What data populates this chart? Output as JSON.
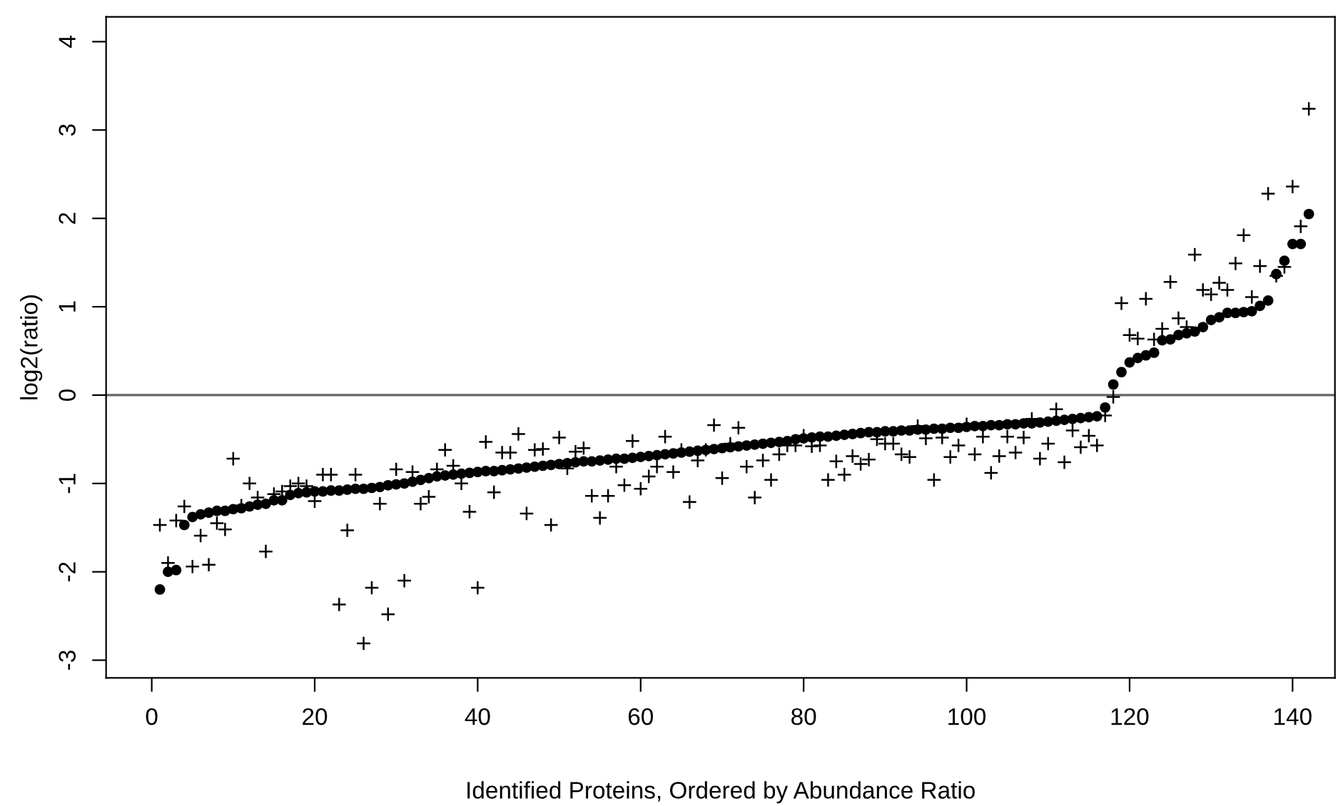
{
  "chart_data": {
    "type": "scatter",
    "xlabel": "Identified Proteins, Ordered by Abundance Ratio",
    "ylabel": "log2(ratio)",
    "xlim": [
      -5.6,
      145.2
    ],
    "ylim": [
      -3.2,
      4.28
    ],
    "xticks": [
      0,
      20,
      40,
      60,
      80,
      100,
      120,
      140
    ],
    "yticks": [
      -3,
      -2,
      -1,
      0,
      1,
      2,
      3,
      4
    ],
    "grid": false,
    "legend": false,
    "ref_lines": [
      {
        "axis": "y",
        "value": 0,
        "label": null,
        "color": "#666666"
      }
    ],
    "x": [
      1,
      2,
      3,
      4,
      5,
      6,
      7,
      8,
      9,
      10,
      11,
      12,
      13,
      14,
      15,
      16,
      17,
      18,
      19,
      20,
      21,
      22,
      23,
      24,
      25,
      26,
      27,
      28,
      29,
      30,
      31,
      32,
      33,
      34,
      35,
      36,
      37,
      38,
      39,
      40,
      41,
      42,
      43,
      44,
      45,
      46,
      47,
      48,
      49,
      50,
      51,
      52,
      53,
      54,
      55,
      56,
      57,
      58,
      59,
      60,
      61,
      62,
      63,
      64,
      65,
      66,
      67,
      68,
      69,
      70,
      71,
      72,
      73,
      74,
      75,
      76,
      77,
      78,
      79,
      80,
      81,
      82,
      83,
      84,
      85,
      86,
      87,
      88,
      89,
      90,
      91,
      92,
      93,
      94,
      95,
      96,
      97,
      98,
      99,
      100,
      101,
      102,
      103,
      104,
      105,
      106,
      107,
      108,
      109,
      110,
      111,
      112,
      113,
      114,
      115,
      116,
      117,
      118,
      119,
      120,
      121,
      122,
      123,
      124,
      125,
      126,
      127,
      128,
      129,
      130,
      131,
      132,
      133,
      134,
      135,
      136,
      137,
      138,
      139,
      140,
      141,
      142
    ],
    "series": [
      {
        "color": "#000000",
        "marker": "circle",
        "values": [
          -2.2,
          -2.0,
          -1.98,
          -1.47,
          -1.38,
          -1.35,
          -1.33,
          -1.31,
          -1.31,
          -1.29,
          -1.28,
          -1.26,
          -1.24,
          -1.23,
          -1.19,
          -1.19,
          -1.13,
          -1.11,
          -1.1,
          -1.09,
          -1.09,
          -1.08,
          -1.08,
          -1.07,
          -1.06,
          -1.06,
          -1.05,
          -1.04,
          -1.02,
          -1.01,
          -1.0,
          -0.98,
          -0.96,
          -0.94,
          -0.92,
          -0.91,
          -0.9,
          -0.89,
          -0.88,
          -0.87,
          -0.86,
          -0.86,
          -0.85,
          -0.84,
          -0.83,
          -0.82,
          -0.81,
          -0.8,
          -0.79,
          -0.78,
          -0.77,
          -0.76,
          -0.75,
          -0.75,
          -0.74,
          -0.73,
          -0.72,
          -0.72,
          -0.71,
          -0.7,
          -0.69,
          -0.68,
          -0.67,
          -0.66,
          -0.65,
          -0.64,
          -0.63,
          -0.62,
          -0.61,
          -0.6,
          -0.59,
          -0.58,
          -0.57,
          -0.56,
          -0.55,
          -0.54,
          -0.53,
          -0.52,
          -0.5,
          -0.49,
          -0.48,
          -0.47,
          -0.47,
          -0.46,
          -0.45,
          -0.44,
          -0.43,
          -0.42,
          -0.42,
          -0.41,
          -0.41,
          -0.4,
          -0.4,
          -0.39,
          -0.39,
          -0.38,
          -0.38,
          -0.37,
          -0.37,
          -0.36,
          -0.35,
          -0.35,
          -0.34,
          -0.34,
          -0.33,
          -0.33,
          -0.32,
          -0.32,
          -0.31,
          -0.3,
          -0.29,
          -0.28,
          -0.27,
          -0.26,
          -0.25,
          -0.24,
          -0.14,
          0.12,
          0.26,
          0.37,
          0.42,
          0.45,
          0.48,
          0.62,
          0.63,
          0.68,
          0.7,
          0.72,
          0.77,
          0.85,
          0.88,
          0.93,
          0.93,
          0.94,
          0.95,
          1.01,
          1.07,
          1.37,
          1.52,
          1.71,
          1.71,
          2.05
        ]
      },
      {
        "color": "#000000",
        "marker": "cross",
        "values": [
          -1.47,
          -1.9,
          -1.42,
          -1.26,
          -1.94,
          -1.59,
          -1.92,
          -1.45,
          -1.52,
          -0.72,
          -1.25,
          -1.0,
          -1.16,
          -1.77,
          -1.12,
          -1.09,
          -1.03,
          -1.0,
          -1.03,
          -1.2,
          -0.9,
          -0.9,
          -2.37,
          -1.53,
          -0.9,
          -2.81,
          -2.18,
          -1.23,
          -2.48,
          -0.84,
          -2.1,
          -0.87,
          -1.23,
          -1.15,
          -0.84,
          -0.62,
          -0.8,
          -1.0,
          -1.32,
          -2.18,
          -0.53,
          -1.1,
          -0.65,
          -0.65,
          -0.44,
          -1.34,
          -0.62,
          -0.61,
          -1.47,
          -0.48,
          -0.83,
          -0.64,
          -0.6,
          -1.14,
          -1.39,
          -1.14,
          -0.81,
          -1.02,
          -0.52,
          -1.06,
          -0.92,
          -0.81,
          -0.47,
          -0.87,
          -0.62,
          -1.21,
          -0.74,
          -0.62,
          -0.34,
          -0.94,
          -0.55,
          -0.37,
          -0.81,
          -1.16,
          -0.74,
          -0.96,
          -0.67,
          -0.57,
          -0.57,
          -0.46,
          -0.58,
          -0.57,
          -0.96,
          -0.75,
          -0.9,
          -0.69,
          -0.78,
          -0.73,
          -0.5,
          -0.55,
          -0.55,
          -0.67,
          -0.7,
          -0.35,
          -0.49,
          -0.96,
          -0.48,
          -0.7,
          -0.57,
          -0.33,
          -0.67,
          -0.47,
          -0.88,
          -0.69,
          -0.47,
          -0.65,
          -0.48,
          -0.27,
          -0.72,
          -0.55,
          -0.16,
          -0.76,
          -0.4,
          -0.59,
          -0.46,
          -0.57,
          -0.23,
          -0.02,
          1.04,
          0.68,
          0.64,
          1.09,
          0.63,
          0.75,
          1.28,
          0.87,
          0.77,
          1.59,
          1.19,
          1.14,
          1.27,
          1.19,
          1.49,
          1.81,
          1.11,
          1.46,
          2.28,
          1.35,
          1.45,
          2.36,
          1.91,
          3.24
        ]
      }
    ]
  }
}
